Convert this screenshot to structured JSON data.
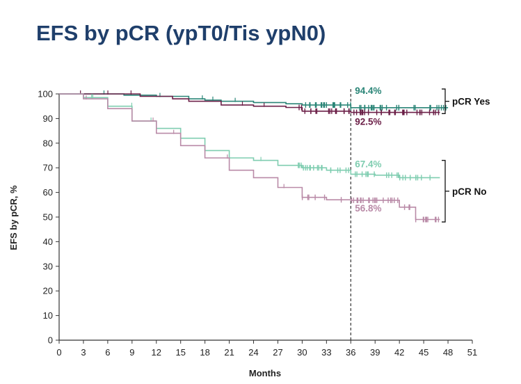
{
  "title": "EFS by pCR (ypT0/Tis ypN0)",
  "chart_data": {
    "type": "line",
    "title": "EFS by pCR (ypT0/Tis ypN0)",
    "xlabel": "Months",
    "ylabel": "EFS by pCR, %",
    "xlim": [
      0,
      51
    ],
    "ylim": [
      0,
      100
    ],
    "x_ticks": [
      0,
      3,
      6,
      9,
      12,
      15,
      18,
      21,
      24,
      27,
      30,
      33,
      36,
      39,
      42,
      45,
      48,
      51
    ],
    "y_ticks": [
      0,
      10,
      20,
      30,
      40,
      50,
      60,
      70,
      80,
      90,
      100
    ],
    "reference_line_x": 36,
    "groups": [
      {
        "label": "pCR Yes",
        "range": [
          92,
          102
        ]
      },
      {
        "label": "pCR No",
        "range": [
          48,
          73
        ]
      }
    ],
    "series": [
      {
        "name": "pCR Yes (teal)",
        "color": "#2a8577",
        "x": [
          0,
          8,
          12,
          16,
          18,
          20,
          24,
          28,
          30,
          36,
          48
        ],
        "y": [
          100,
          99.5,
          99,
          98,
          97.5,
          97,
          96.5,
          96,
          95.5,
          94.4,
          94.4
        ],
        "label": "94.4%",
        "label_at": [
          36,
          94.4
        ]
      },
      {
        "name": "pCR Yes (maroon)",
        "color": "#6b1f47",
        "x": [
          0,
          10,
          14,
          16,
          20,
          24,
          28,
          30,
          36,
          47
        ],
        "y": [
          100,
          99,
          98,
          97,
          95.5,
          95,
          94.5,
          93,
          92.5,
          92.5
        ],
        "label": "92.5%",
        "label_at": [
          36,
          92.5
        ]
      },
      {
        "name": "pCR No (light green)",
        "color": "#7fcdb0",
        "x": [
          0,
          3,
          6,
          9,
          12,
          15,
          18,
          21,
          24,
          27,
          30,
          33,
          36,
          39,
          42,
          45,
          47
        ],
        "y": [
          100,
          98.5,
          95,
          89,
          86,
          82,
          77,
          74,
          73,
          71,
          70,
          69,
          67.4,
          67,
          66,
          66,
          66
        ],
        "label": "67.4%",
        "label_at": [
          36,
          67.4
        ]
      },
      {
        "name": "pCR No (mauve)",
        "color": "#b98aa7",
        "x": [
          0,
          3,
          6,
          9,
          12,
          15,
          18,
          21,
          24,
          27,
          30,
          33,
          36,
          39,
          42,
          44,
          47
        ],
        "y": [
          100,
          98,
          94,
          89,
          84,
          79,
          74,
          69,
          66,
          62,
          58,
          57,
          56.8,
          56.8,
          54,
          49,
          49
        ],
        "label": "56.8%",
        "label_at": [
          36,
          56.8
        ]
      }
    ]
  }
}
